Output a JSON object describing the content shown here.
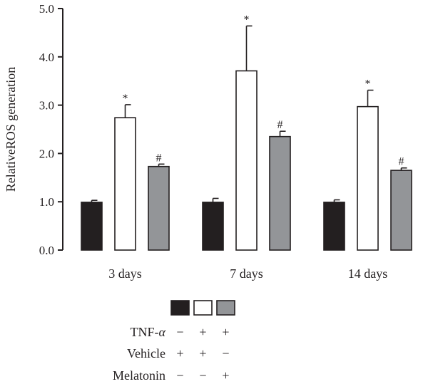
{
  "chart_data": {
    "type": "bar",
    "title": "",
    "xlabel": "",
    "ylabel": "RelativeROS generation",
    "ylim": [
      0,
      5
    ],
    "yticks": [
      "0.0",
      "1.0",
      "2.0",
      "3.0",
      "4.0",
      "5.0"
    ],
    "categories": [
      "3 days",
      "7 days",
      "14 days"
    ],
    "grid": false,
    "series": [
      {
        "values": [
          0.99,
          0.99,
          0.99
        ],
        "errors": [
          0.04,
          0.08,
          0.05
        ],
        "labels": [
          "",
          "",
          ""
        ],
        "fill": "#231f20"
      },
      {
        "values": [
          2.74,
          3.71,
          2.97
        ],
        "errors": [
          0.27,
          0.93,
          0.34
        ],
        "labels": [
          "*",
          "*",
          "*"
        ],
        "fill": "#ffffff"
      },
      {
        "values": [
          1.73,
          2.35,
          1.65
        ],
        "errors": [
          0.05,
          0.11,
          0.05
        ],
        "labels": [
          "#",
          "#",
          "#"
        ],
        "fill": "#939598"
      }
    ]
  },
  "legend": {
    "swatches": [
      "#231f20",
      "#ffffff",
      "#939598"
    ],
    "rows": [
      {
        "label": "TNF-",
        "label_greek": "α",
        "signs": [
          "−",
          "+",
          "+"
        ]
      },
      {
        "label": "Vehicle",
        "signs": [
          "+",
          "+",
          "−"
        ]
      },
      {
        "label": "Melatonin",
        "signs": [
          "−",
          "−",
          "+"
        ]
      }
    ]
  },
  "colors": {
    "axis": "#231f20",
    "bar_outline": "#231f20"
  }
}
